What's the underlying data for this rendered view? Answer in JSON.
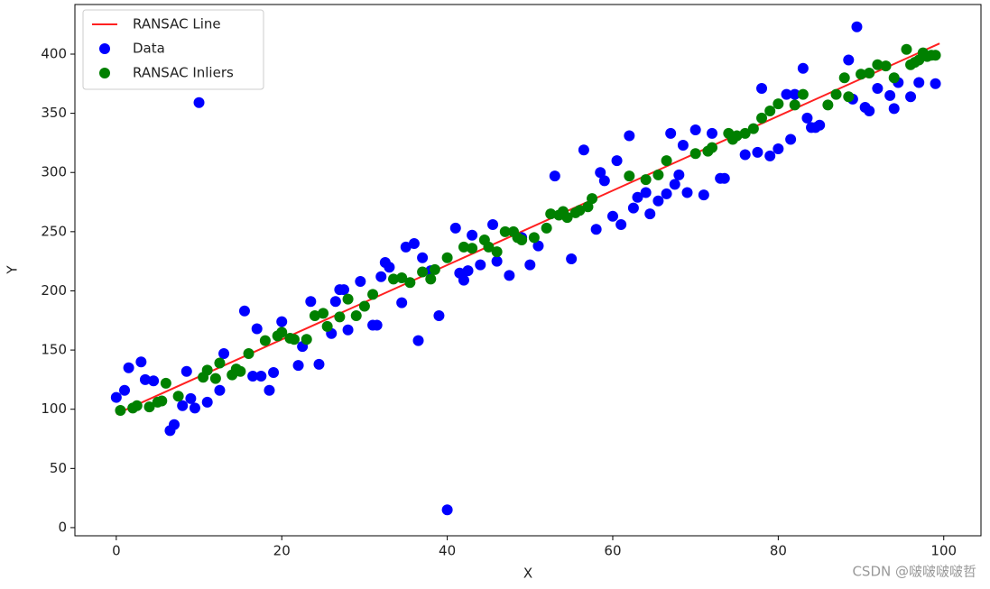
{
  "chart_data": {
    "type": "scatter",
    "xlabel": "X",
    "ylabel": "Y",
    "xlim": [
      -5,
      104.5
    ],
    "ylim": [
      -6.9,
      441.9
    ],
    "xticks": [
      0,
      20,
      40,
      60,
      80,
      100
    ],
    "yticks": [
      0,
      50,
      100,
      150,
      200,
      250,
      300,
      350,
      400
    ],
    "legend": "upper left",
    "watermark": "CSDN @啵啵啵啵哲",
    "series": [
      {
        "name": "RANSAC Line",
        "kind": "line",
        "color": "#ff2020",
        "x": [
          0,
          99.5
        ],
        "y": [
          96,
          409
        ]
      },
      {
        "name": "Data",
        "kind": "points",
        "color": "#0000ff",
        "x": [
          0,
          1,
          1.5,
          3,
          3.5,
          4.5,
          6.5,
          7,
          8,
          8.5,
          9,
          9.5,
          10,
          11,
          12.5,
          13,
          15.5,
          16.5,
          17,
          17.5,
          18.5,
          19,
          20,
          22,
          22.5,
          23.5,
          24.5,
          26,
          26.5,
          27,
          27.5,
          28,
          29.5,
          31,
          31.5,
          32,
          32.5,
          33,
          34.5,
          35,
          36,
          36.5,
          37,
          38,
          39,
          40,
          41,
          41.5,
          42,
          42.5,
          43,
          44,
          45.5,
          46,
          47.5,
          49,
          50,
          51,
          53,
          55,
          56.5,
          58,
          58.5,
          59,
          60,
          60.5,
          61,
          62,
          62.5,
          63,
          64,
          64.5,
          65.5,
          66.5,
          67,
          67.5,
          68,
          68.5,
          69,
          70,
          71,
          72,
          73,
          73.5,
          76,
          77.5,
          78,
          79,
          80,
          81,
          81.5,
          82,
          83,
          83.5,
          84,
          84.5,
          85,
          88.5,
          89,
          89.5,
          90.5,
          91,
          92,
          93.5,
          94,
          94.5,
          96,
          97,
          99
        ],
        "y": [
          110,
          116,
          135,
          140,
          125,
          124,
          82,
          87,
          103,
          132,
          109,
          101,
          359,
          106,
          116,
          147,
          183,
          128,
          168,
          128,
          116,
          131,
          174,
          137,
          153,
          191,
          138,
          164,
          191,
          201,
          201,
          167,
          208,
          171,
          171,
          212,
          224,
          220,
          190,
          237,
          240,
          158,
          228,
          217,
          179,
          15,
          253,
          215,
          209,
          217,
          247,
          222,
          256,
          225,
          213,
          245,
          222,
          238,
          297,
          227,
          319,
          252,
          300,
          293,
          263,
          310,
          256,
          331,
          270,
          279,
          283,
          265,
          276,
          282,
          333,
          290,
          298,
          323,
          283,
          336,
          281,
          333,
          295,
          295,
          315,
          317,
          371,
          314,
          320,
          366,
          328,
          366,
          388,
          346,
          338,
          338,
          340,
          395,
          362,
          423,
          355,
          352,
          371,
          365,
          354,
          376,
          364,
          376,
          375
        ]
      },
      {
        "name": "RANSAC Inliers",
        "kind": "points",
        "color": "#008000",
        "x": [
          0.5,
          2,
          2.5,
          4,
          5,
          5.5,
          6,
          7.5,
          10.5,
          11,
          12,
          12.5,
          14,
          14.5,
          15,
          16,
          18,
          19.5,
          20,
          21,
          21.5,
          23,
          24,
          25,
          25.5,
          27,
          28,
          29,
          30,
          31,
          33.5,
          34.5,
          35.5,
          37,
          38,
          38.5,
          40,
          42,
          43,
          44.5,
          45,
          46,
          47,
          48,
          48.5,
          49,
          50.5,
          52,
          52.5,
          53.5,
          54,
          54.5,
          55.5,
          56,
          57,
          57.5,
          62,
          64,
          65.5,
          66.5,
          70,
          71.5,
          72,
          74,
          74.5,
          75,
          76,
          77,
          78,
          79,
          80,
          82,
          83,
          86,
          87,
          88,
          88.5,
          90,
          91,
          92,
          93,
          94,
          95.5,
          96,
          96.5,
          97,
          97.5,
          98,
          98.5,
          99
        ],
        "y": [
          99,
          101,
          103,
          102,
          106,
          107,
          122,
          111,
          127,
          133,
          126,
          139,
          129,
          134,
          132,
          147,
          158,
          162,
          165,
          160,
          159,
          159,
          179,
          181,
          170,
          178,
          193,
          179,
          187,
          197,
          210,
          211,
          207,
          216,
          210,
          218,
          228,
          237,
          236,
          243,
          237,
          233,
          250,
          250,
          245,
          243,
          245,
          253,
          265,
          264,
          267,
          262,
          266,
          268,
          271,
          278,
          297,
          294,
          298,
          310,
          316,
          318,
          321,
          333,
          328,
          331,
          333,
          337,
          346,
          352,
          358,
          357,
          366,
          357,
          366,
          380,
          364,
          383,
          384,
          391,
          390,
          380,
          404,
          391,
          393,
          395,
          401,
          398,
          399,
          399
        ]
      }
    ]
  }
}
